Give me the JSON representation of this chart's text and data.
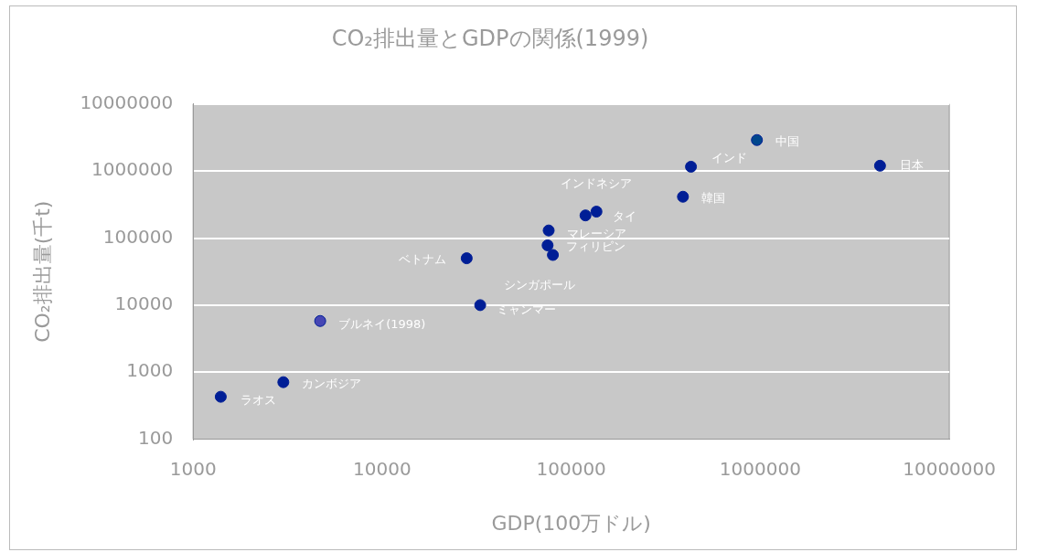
{
  "chart_data": {
    "type": "scatter",
    "title": "CO₂排出量とGDPの関係(1999)",
    "xlabel": "GDP(100万ドル)",
    "ylabel": "CO₂排出量(千t)",
    "log": "xy",
    "grid": "y",
    "legend": false,
    "marker": "circle",
    "xlim": [
      1000,
      10000000
    ],
    "xticks": [
      1000,
      10000,
      100000,
      1000000,
      10000000
    ],
    "ylim": [
      100,
      10000000
    ],
    "yticks": [
      100,
      1000,
      10000,
      100000,
      1000000,
      10000000
    ],
    "series": [
      {
        "color": "#001e96",
        "x": [
          1400,
          3000,
          4700,
          33000,
          28000,
          75000,
          76000,
          80000,
          119000,
          136000,
          390000,
          430000,
          960000,
          4300000
        ],
        "values": [
          430,
          710,
          5800,
          10000,
          50000,
          78000,
          130000,
          56000,
          218000,
          248000,
          414000,
          1160000,
          2900000,
          1200000
        ],
        "colors": [
          "#001e96",
          "#001e96",
          "#4646b4",
          "#001e96",
          "#001e96",
          "#001e96",
          "#001e96",
          "#001e96",
          "#001e96",
          "#001e96",
          "#001e96",
          "#001e96",
          "#00468c",
          "#001e96"
        ]
      }
    ],
    "annotations": [
      {
        "text": "ラオス",
        "x": 1400,
        "y": 430
      },
      {
        "text": "カンボジア",
        "x": 3000,
        "y": 710
      },
      {
        "text": "ブルネイ(1998)",
        "x": 4700,
        "y": 5800
      },
      {
        "text": "ミャンマー",
        "x": 33000,
        "y": 10000
      },
      {
        "text": "ベトナム",
        "x": 28000,
        "y": 50000
      },
      {
        "text": "フィリピン",
        "x": 75000,
        "y": 78000
      },
      {
        "text": "マレーシア",
        "x": 76000,
        "y": 130000
      },
      {
        "text": "シンガポール",
        "x": 80000,
        "y": 56000
      },
      {
        "text": "タイ",
        "x": 119000,
        "y": 218000
      },
      {
        "text": "インドネシア",
        "x": 136000,
        "y": 248000
      },
      {
        "text": "韓国",
        "x": 390000,
        "y": 414000
      },
      {
        "text": "インド",
        "x": 430000,
        "y": 1160000
      },
      {
        "text": "中国",
        "x": 960000,
        "y": 2900000
      },
      {
        "text": "日本",
        "x": 4300000,
        "y": 1200000
      }
    ]
  }
}
